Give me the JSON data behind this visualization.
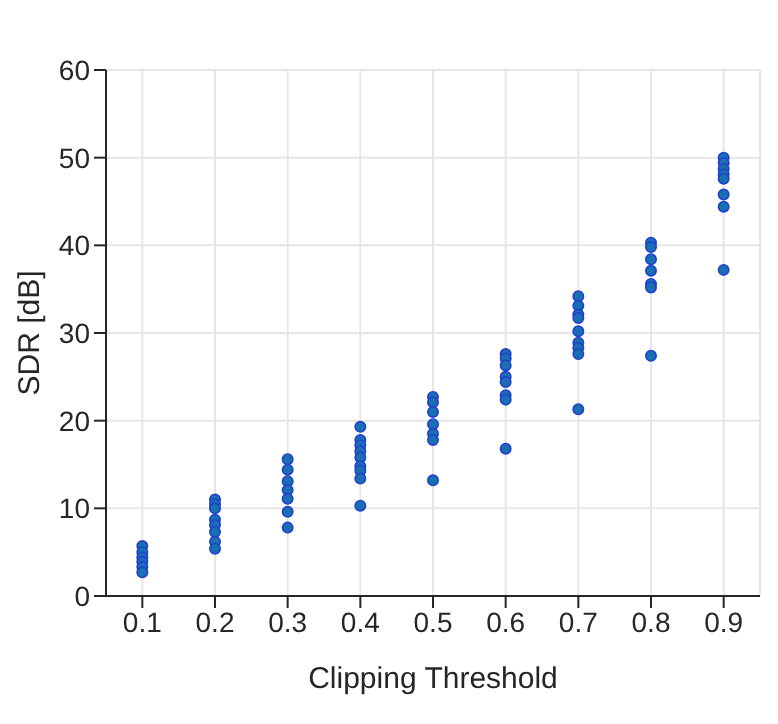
{
  "chart_data": {
    "type": "scatter",
    "xlabel": "Clipping Threshold",
    "ylabel": "SDR [dB]",
    "x": [
      0.1,
      0.1,
      0.1,
      0.1,
      0.1,
      0.1,
      0.2,
      0.2,
      0.2,
      0.2,
      0.2,
      0.2,
      0.2,
      0.2,
      0.3,
      0.3,
      0.3,
      0.3,
      0.3,
      0.3,
      0.3,
      0.4,
      0.4,
      0.4,
      0.4,
      0.4,
      0.4,
      0.4,
      0.4,
      0.4,
      0.5,
      0.5,
      0.5,
      0.5,
      0.5,
      0.5,
      0.5,
      0.6,
      0.6,
      0.6,
      0.6,
      0.6,
      0.6,
      0.6,
      0.6,
      0.7,
      0.7,
      0.7,
      0.7,
      0.7,
      0.7,
      0.7,
      0.7,
      0.7,
      0.8,
      0.8,
      0.8,
      0.8,
      0.8,
      0.8,
      0.8,
      0.9,
      0.9,
      0.9,
      0.9,
      0.9,
      0.9,
      0.9,
      0.9
    ],
    "values": [
      5.7,
      5.0,
      4.4,
      3.9,
      3.3,
      2.7,
      11.0,
      10.5,
      10.0,
      8.7,
      8.1,
      7.3,
      6.2,
      5.4,
      15.6,
      14.4,
      13.1,
      12.1,
      11.1,
      9.6,
      7.8,
      19.3,
      17.8,
      17.2,
      16.5,
      15.8,
      14.8,
      14.3,
      13.4,
      10.3,
      22.7,
      22.1,
      21.0,
      19.6,
      18.5,
      17.8,
      13.2,
      27.6,
      27.1,
      26.3,
      25.0,
      24.4,
      22.9,
      22.4,
      16.8,
      34.2,
      33.1,
      32.1,
      31.7,
      30.2,
      28.9,
      28.3,
      27.6,
      21.3,
      40.3,
      39.8,
      38.4,
      37.1,
      35.6,
      35.2,
      27.4,
      50.0,
      49.4,
      48.7,
      48.1,
      47.6,
      45.8,
      44.4,
      37.2
    ],
    "color": "#1a6fb0",
    "marker": "circle",
    "grid": true,
    "xlim": [
      0.05,
      0.95
    ],
    "xticks": [
      0.1,
      0.2,
      0.3,
      0.4,
      0.5,
      0.6,
      0.7,
      0.8,
      0.9
    ],
    "ylim": [
      0,
      60
    ],
    "yticks": [
      0,
      10,
      20,
      30,
      40,
      50,
      60
    ]
  }
}
